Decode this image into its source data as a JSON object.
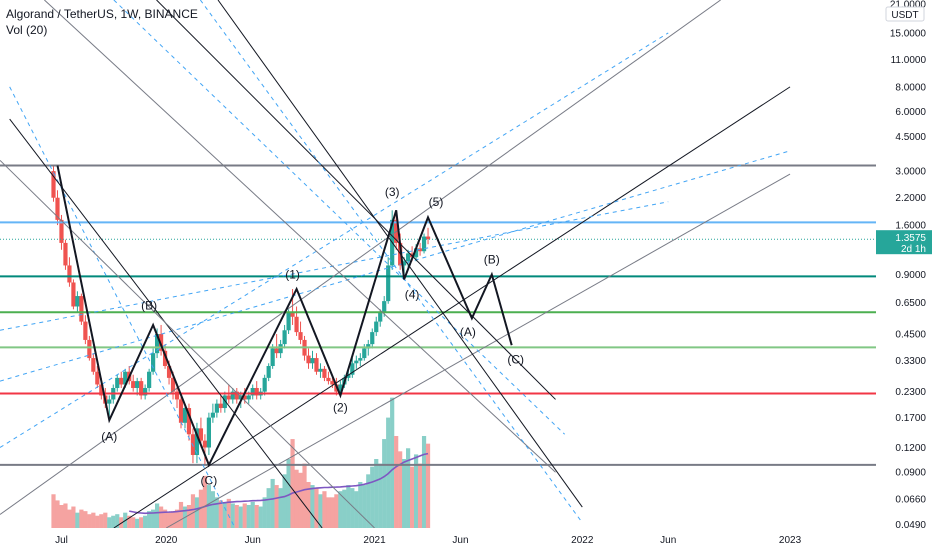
{
  "header": {
    "title": "Algorand / TetherUS, 1W, BINANCE",
    "indicator": "Vol (20)"
  },
  "currency_badge": "USDT",
  "price_tag": {
    "value": "1.3575",
    "countdown": "2d 1h",
    "color": "#26a69a"
  },
  "chart_data": {
    "type": "candlestick",
    "symbol": "ALGOUSDT",
    "interval": "1W",
    "exchange": "BINANCE",
    "yscale": "log",
    "ylim": [
      0.047,
      22.0
    ],
    "y_ticks": [
      "21.0000",
      "15.0000",
      "11.0000",
      "8.0000",
      "6.0000",
      "4.5000",
      "3.0000",
      "2.2000",
      "1.6000",
      "0.9000",
      "0.6500",
      "0.4500",
      "0.3300",
      "0.2300",
      "0.1700",
      "0.1200",
      "0.0900",
      "0.0660",
      "0.0490"
    ],
    "y_tick_values": [
      21,
      15,
      11,
      8,
      6,
      4.5,
      3,
      2.2,
      1.6,
      0.9,
      0.65,
      0.45,
      0.33,
      0.23,
      0.17,
      0.12,
      0.09,
      0.066,
      0.049
    ],
    "x_ticks": [
      {
        "label": "Jul",
        "date": "2019-07-01"
      },
      {
        "label": "2020",
        "date": "2020-01-01"
      },
      {
        "label": "Jun",
        "date": "2020-06-01"
      },
      {
        "label": "2021",
        "date": "2021-01-01"
      },
      {
        "label": "Jun",
        "date": "2021-06-01"
      },
      {
        "label": "2022",
        "date": "2022-01-01"
      },
      {
        "label": "Jun",
        "date": "2022-06-01"
      },
      {
        "label": "2023",
        "date": "2023-01-01"
      }
    ],
    "xlim": [
      "2019-03-15",
      "2023-06-01"
    ],
    "current_price": 1.3575,
    "horizontal_levels": [
      {
        "price": 3.2,
        "color": "#787b86"
      },
      {
        "price": 1.65,
        "color": "#64b5f6"
      },
      {
        "price": 0.88,
        "color": "#00897b"
      },
      {
        "price": 0.58,
        "color": "#4caf50"
      },
      {
        "price": 0.385,
        "color": "#81c784"
      },
      {
        "price": 0.225,
        "color": "#f23645"
      },
      {
        "price": 0.098,
        "color": "#787b86"
      }
    ],
    "wave_path": [
      {
        "date": "2019-06-24",
        "price": 3.2
      },
      {
        "date": "2019-09-23",
        "price": 0.165
      },
      {
        "date": "2019-12-09",
        "price": 0.5
      },
      {
        "date": "2020-03-16",
        "price": 0.098
      },
      {
        "date": "2020-08-17",
        "price": 0.76
      },
      {
        "date": "2020-11-02",
        "price": 0.22
      },
      {
        "date": "2021-02-08",
        "price": 1.9
      },
      {
        "date": "2021-02-22",
        "price": 0.85
      },
      {
        "date": "2021-04-05",
        "price": 1.75
      },
      {
        "date": "2021-06-21",
        "price": 0.54
      },
      {
        "date": "2021-07-26",
        "price": 0.9
      },
      {
        "date": "2021-08-30",
        "price": 0.395
      }
    ],
    "wave_labels": [
      {
        "text": "(A)",
        "date": "2019-09-23",
        "price": 0.13
      },
      {
        "text": "(B)",
        "date": "2019-12-02",
        "price": 0.6
      },
      {
        "text": "(C)",
        "date": "2020-03-16",
        "price": 0.078
      },
      {
        "text": "(1)",
        "date": "2020-08-10",
        "price": 0.86
      },
      {
        "text": "(2)",
        "date": "2020-11-02",
        "price": 0.183
      },
      {
        "text": "(3)",
        "date": "2021-02-01",
        "price": 2.25
      },
      {
        "text": "(4)",
        "date": "2021-03-08",
        "price": 0.68
      },
      {
        "text": "(5)",
        "date": "2021-04-19",
        "price": 2.0
      },
      {
        "text": "(A)",
        "date": "2021-06-14",
        "price": 0.44
      },
      {
        "text": "(B)",
        "date": "2021-07-26",
        "price": 1.02
      },
      {
        "text": "(C)",
        "date": "2021-09-06",
        "price": 0.32
      }
    ],
    "trend_lines": [
      {
        "p1": [
          "2019-03-15",
          0.055
        ],
        "p2": [
          "2022-09-01",
          22.0
        ],
        "color": "#787b86",
        "dash": false
      },
      {
        "p1": [
          "2019-03-15",
          0.12
        ],
        "p2": [
          "2022-06-01",
          15.0
        ],
        "color": "#42a5f5",
        "dash": true
      },
      {
        "p1": [
          "2019-10-01",
          0.047
        ],
        "p2": [
          "2023-01-01",
          8.0
        ],
        "color": "#131722",
        "dash": false
      },
      {
        "p1": [
          "2019-03-15",
          0.26
        ],
        "p2": [
          "2023-01-01",
          3.8
        ],
        "color": "#42a5f5",
        "dash": true
      },
      {
        "p1": [
          "2019-03-15",
          0.47
        ],
        "p2": [
          "2022-06-01",
          2.1
        ],
        "color": "#42a5f5",
        "dash": true
      },
      {
        "p1": [
          "2020-01-01",
          0.047
        ],
        "p2": [
          "2023-01-01",
          2.9
        ],
        "color": "#787b86",
        "dash": false
      },
      {
        "p1": [
          "2019-04-01",
          8.0
        ],
        "p2": [
          "2020-05-01",
          0.047
        ],
        "color": "#42a5f5",
        "dash": true
      },
      {
        "p1": [
          "2019-04-01",
          5.5
        ],
        "p2": [
          "2020-10-01",
          0.047
        ],
        "color": "#131722",
        "dash": false
      },
      {
        "p1": [
          "2019-03-15",
          3.4
        ],
        "p2": [
          "2021-01-01",
          0.047
        ],
        "color": "#787b86",
        "dash": false
      },
      {
        "p1": [
          "2019-06-01",
          22.0
        ],
        "p2": [
          "2021-11-15",
          0.09
        ],
        "color": "#787b86",
        "dash": false
      },
      {
        "p1": [
          "2019-10-01",
          22.0
        ],
        "p2": [
          "2021-12-01",
          0.14
        ],
        "color": "#42a5f5",
        "dash": true
      },
      {
        "p1": [
          "2019-12-15",
          22.0
        ],
        "p2": [
          "2021-11-15",
          0.21
        ],
        "color": "#131722",
        "dash": false
      },
      {
        "p1": [
          "2020-03-01",
          22.0
        ],
        "p2": [
          "2022-01-01",
          0.05
        ],
        "color": "#42a5f5",
        "dash": true
      },
      {
        "p1": [
          "2020-04-01",
          22.0
        ],
        "p2": [
          "2022-01-01",
          0.06
        ],
        "color": "#131722",
        "dash": false
      }
    ],
    "candles_ohlc": [
      [
        "2019-06-17",
        3.0,
        3.2,
        2.1,
        2.2
      ],
      [
        "2019-06-24",
        2.2,
        2.4,
        1.6,
        1.7
      ],
      [
        "2019-07-01",
        1.7,
        1.8,
        1.2,
        1.3
      ],
      [
        "2019-07-08",
        1.3,
        1.35,
        0.95,
        1.0
      ],
      [
        "2019-07-15",
        1.0,
        1.1,
        0.78,
        0.82
      ],
      [
        "2019-07-22",
        0.82,
        0.85,
        0.6,
        0.62
      ],
      [
        "2019-07-29",
        0.62,
        0.74,
        0.58,
        0.7
      ],
      [
        "2019-08-05",
        0.7,
        0.72,
        0.5,
        0.52
      ],
      [
        "2019-08-12",
        0.52,
        0.56,
        0.4,
        0.42
      ],
      [
        "2019-08-19",
        0.42,
        0.44,
        0.33,
        0.34
      ],
      [
        "2019-08-26",
        0.34,
        0.36,
        0.28,
        0.29
      ],
      [
        "2019-09-02",
        0.29,
        0.31,
        0.24,
        0.25
      ],
      [
        "2019-09-09",
        0.25,
        0.27,
        0.21,
        0.22
      ],
      [
        "2019-09-16",
        0.22,
        0.24,
        0.19,
        0.2
      ],
      [
        "2019-09-23",
        0.2,
        0.22,
        0.17,
        0.21
      ],
      [
        "2019-09-30",
        0.21,
        0.25,
        0.2,
        0.24
      ],
      [
        "2019-10-07",
        0.24,
        0.28,
        0.23,
        0.27
      ],
      [
        "2019-10-14",
        0.27,
        0.29,
        0.24,
        0.25
      ],
      [
        "2019-10-21",
        0.25,
        0.3,
        0.24,
        0.29
      ],
      [
        "2019-10-28",
        0.29,
        0.31,
        0.25,
        0.26
      ],
      [
        "2019-11-04",
        0.26,
        0.28,
        0.23,
        0.24
      ],
      [
        "2019-11-11",
        0.24,
        0.27,
        0.22,
        0.26
      ],
      [
        "2019-11-18",
        0.26,
        0.27,
        0.21,
        0.22
      ],
      [
        "2019-11-25",
        0.22,
        0.25,
        0.21,
        0.24
      ],
      [
        "2019-12-02",
        0.24,
        0.3,
        0.23,
        0.29
      ],
      [
        "2019-12-09",
        0.29,
        0.38,
        0.28,
        0.36
      ],
      [
        "2019-12-16",
        0.36,
        0.48,
        0.34,
        0.45
      ],
      [
        "2019-12-23",
        0.45,
        0.5,
        0.35,
        0.37
      ],
      [
        "2019-12-30",
        0.37,
        0.4,
        0.3,
        0.31
      ],
      [
        "2020-01-06",
        0.31,
        0.33,
        0.25,
        0.27
      ],
      [
        "2020-01-13",
        0.27,
        0.29,
        0.21,
        0.23
      ],
      [
        "2020-01-20",
        0.23,
        0.25,
        0.19,
        0.21
      ],
      [
        "2020-01-27",
        0.21,
        0.22,
        0.15,
        0.16
      ],
      [
        "2020-02-03",
        0.16,
        0.2,
        0.15,
        0.19
      ],
      [
        "2020-02-10",
        0.19,
        0.2,
        0.13,
        0.14
      ],
      [
        "2020-02-17",
        0.14,
        0.15,
        0.1,
        0.11
      ],
      [
        "2020-02-24",
        0.11,
        0.16,
        0.1,
        0.15
      ],
      [
        "2020-03-02",
        0.15,
        0.17,
        0.12,
        0.13
      ],
      [
        "2020-03-09",
        0.13,
        0.14,
        0.098,
        0.12
      ],
      [
        "2020-03-16",
        0.12,
        0.18,
        0.11,
        0.17
      ],
      [
        "2020-03-23",
        0.17,
        0.2,
        0.16,
        0.18
      ],
      [
        "2020-03-30",
        0.18,
        0.21,
        0.17,
        0.2
      ],
      [
        "2020-04-06",
        0.2,
        0.22,
        0.18,
        0.19
      ],
      [
        "2020-04-13",
        0.19,
        0.23,
        0.18,
        0.22
      ],
      [
        "2020-04-20",
        0.22,
        0.25,
        0.2,
        0.21
      ],
      [
        "2020-04-27",
        0.21,
        0.24,
        0.2,
        0.23
      ],
      [
        "2020-05-04",
        0.23,
        0.24,
        0.2,
        0.21
      ],
      [
        "2020-05-11",
        0.21,
        0.23,
        0.19,
        0.22
      ],
      [
        "2020-05-18",
        0.22,
        0.24,
        0.2,
        0.21
      ],
      [
        "2020-05-25",
        0.21,
        0.23,
        0.2,
        0.22
      ],
      [
        "2020-06-01",
        0.22,
        0.25,
        0.21,
        0.24
      ],
      [
        "2020-06-08",
        0.24,
        0.26,
        0.21,
        0.22
      ],
      [
        "2020-06-15",
        0.22,
        0.24,
        0.21,
        0.23
      ],
      [
        "2020-06-22",
        0.23,
        0.28,
        0.22,
        0.27
      ],
      [
        "2020-06-29",
        0.27,
        0.32,
        0.26,
        0.31
      ],
      [
        "2020-07-06",
        0.31,
        0.4,
        0.3,
        0.38
      ],
      [
        "2020-07-13",
        0.38,
        0.45,
        0.34,
        0.36
      ],
      [
        "2020-07-20",
        0.36,
        0.42,
        0.34,
        0.4
      ],
      [
        "2020-07-27",
        0.4,
        0.5,
        0.38,
        0.47
      ],
      [
        "2020-08-03",
        0.47,
        0.6,
        0.45,
        0.58
      ],
      [
        "2020-08-10",
        0.58,
        0.76,
        0.5,
        0.55
      ],
      [
        "2020-08-17",
        0.55,
        0.62,
        0.44,
        0.46
      ],
      [
        "2020-08-24",
        0.46,
        0.52,
        0.4,
        0.42
      ],
      [
        "2020-08-31",
        0.42,
        0.44,
        0.33,
        0.35
      ],
      [
        "2020-09-07",
        0.35,
        0.38,
        0.3,
        0.32
      ],
      [
        "2020-09-14",
        0.32,
        0.37,
        0.3,
        0.34
      ],
      [
        "2020-09-21",
        0.34,
        0.36,
        0.28,
        0.29
      ],
      [
        "2020-09-28",
        0.29,
        0.32,
        0.27,
        0.3
      ],
      [
        "2020-10-05",
        0.3,
        0.31,
        0.26,
        0.27
      ],
      [
        "2020-10-12",
        0.27,
        0.29,
        0.25,
        0.26
      ],
      [
        "2020-10-19",
        0.26,
        0.28,
        0.24,
        0.25
      ],
      [
        "2020-10-26",
        0.25,
        0.27,
        0.22,
        0.23
      ],
      [
        "2020-11-02",
        0.23,
        0.26,
        0.22,
        0.25
      ],
      [
        "2020-11-09",
        0.25,
        0.28,
        0.24,
        0.27
      ],
      [
        "2020-11-16",
        0.27,
        0.3,
        0.26,
        0.28
      ],
      [
        "2020-11-23",
        0.28,
        0.34,
        0.27,
        0.32
      ],
      [
        "2020-11-30",
        0.32,
        0.35,
        0.3,
        0.33
      ],
      [
        "2020-12-07",
        0.33,
        0.36,
        0.31,
        0.34
      ],
      [
        "2020-12-14",
        0.34,
        0.4,
        0.33,
        0.38
      ],
      [
        "2020-12-21",
        0.38,
        0.42,
        0.35,
        0.4
      ],
      [
        "2020-12-28",
        0.4,
        0.48,
        0.38,
        0.46
      ],
      [
        "2021-01-04",
        0.46,
        0.55,
        0.44,
        0.52
      ],
      [
        "2021-01-11",
        0.52,
        0.6,
        0.49,
        0.58
      ],
      [
        "2021-01-18",
        0.58,
        0.7,
        0.55,
        0.66
      ],
      [
        "2021-01-25",
        0.66,
        1.1,
        0.64,
        1.0
      ],
      [
        "2021-02-01",
        1.0,
        1.9,
        0.95,
        1.7
      ],
      [
        "2021-02-08",
        1.7,
        1.85,
        1.2,
        1.3
      ],
      [
        "2021-02-15",
        1.3,
        1.45,
        0.95,
        1.0
      ],
      [
        "2021-02-22",
        1.0,
        1.1,
        0.85,
        1.05
      ],
      [
        "2021-03-01",
        1.05,
        1.2,
        0.98,
        1.15
      ],
      [
        "2021-03-08",
        1.15,
        1.25,
        1.05,
        1.1
      ],
      [
        "2021-03-15",
        1.1,
        1.28,
        1.05,
        1.22
      ],
      [
        "2021-03-22",
        1.22,
        1.3,
        1.12,
        1.18
      ],
      [
        "2021-03-29",
        1.18,
        1.45,
        1.15,
        1.4
      ],
      [
        "2021-04-05",
        1.4,
        1.55,
        1.28,
        1.3575
      ]
    ],
    "volume_series": {
      "name": "Vol (20)",
      "values": [
        0.22,
        0.18,
        0.15,
        0.16,
        0.12,
        0.14,
        0.1,
        0.12,
        0.11,
        0.09,
        0.1,
        0.08,
        0.09,
        0.1,
        0.07,
        0.08,
        0.09,
        0.07,
        0.1,
        0.08,
        0.07,
        0.06,
        0.07,
        0.08,
        0.11,
        0.12,
        0.16,
        0.14,
        0.12,
        0.1,
        0.11,
        0.12,
        0.17,
        0.14,
        0.15,
        0.22,
        0.2,
        0.25,
        0.34,
        0.28,
        0.24,
        0.2,
        0.18,
        0.17,
        0.19,
        0.16,
        0.15,
        0.14,
        0.16,
        0.15,
        0.17,
        0.15,
        0.14,
        0.2,
        0.26,
        0.32,
        0.28,
        0.26,
        0.35,
        0.45,
        0.58,
        0.38,
        0.36,
        0.42,
        0.3,
        0.28,
        0.26,
        0.22,
        0.24,
        0.2,
        0.2,
        0.22,
        0.24,
        0.25,
        0.28,
        0.26,
        0.24,
        0.3,
        0.28,
        0.35,
        0.4,
        0.45,
        0.42,
        0.58,
        0.72,
        0.85,
        0.6,
        0.5,
        0.45,
        0.52,
        0.4,
        0.48,
        0.42,
        0.6,
        0.55
      ],
      "ma_values": [
        null,
        null,
        null,
        null,
        null,
        null,
        null,
        null,
        null,
        null,
        null,
        null,
        null,
        null,
        null,
        null,
        null,
        null,
        null,
        0.11,
        0.105,
        0.1,
        0.098,
        0.096,
        0.097,
        0.098,
        0.1,
        0.102,
        0.103,
        0.104,
        0.105,
        0.107,
        0.11,
        0.113,
        0.116,
        0.12,
        0.125,
        0.132,
        0.14,
        0.148,
        0.154,
        0.158,
        0.162,
        0.165,
        0.168,
        0.17,
        0.172,
        0.173,
        0.175,
        0.176,
        0.178,
        0.179,
        0.18,
        0.182,
        0.186,
        0.19,
        0.195,
        0.2,
        0.205,
        0.215,
        0.228,
        0.235,
        0.242,
        0.25,
        0.254,
        0.257,
        0.26,
        0.262,
        0.264,
        0.265,
        0.266,
        0.267,
        0.268,
        0.27,
        0.272,
        0.274,
        0.276,
        0.28,
        0.285,
        0.292,
        0.3,
        0.31,
        0.32,
        0.335,
        0.355,
        0.38,
        0.4,
        0.415,
        0.43,
        0.44,
        0.45,
        0.46,
        0.47,
        0.48,
        0.485
      ]
    },
    "colors": {
      "up": "#26a69a",
      "down": "#ef5350",
      "volume_up": "#89cfc8",
      "volume_down": "#f5a3a1",
      "ma": "#7e57c2"
    },
    "grid": false
  }
}
